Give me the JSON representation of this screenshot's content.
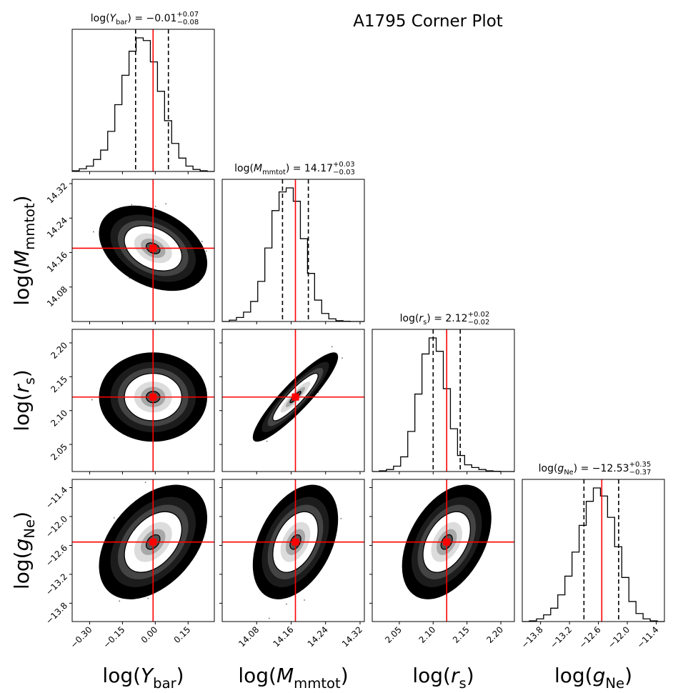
{
  "title": "A1795 Corner Plot",
  "colors": {
    "truth": "#ff0000",
    "hist": "#000000",
    "quantile": "#000000",
    "density": "#000000"
  },
  "chart_data": {
    "type": "corner",
    "title": "A1795 Corner Plot",
    "parameters": [
      {
        "name": "Ybar",
        "label_prefix": "log(",
        "label_var": "Y",
        "label_sub": "bar",
        "label_suffix": ")",
        "title_prefix": "log(",
        "title_var": "Y",
        "title_sub": "bar",
        "title_suffix": ") = −0.01",
        "title_plus": "+0.07",
        "title_minus": "−0.08",
        "median": -0.01,
        "q16": -0.09,
        "q84": 0.06,
        "range": [
          -0.38,
          0.27
        ],
        "ticks": [
          -0.3,
          -0.15,
          0.0,
          0.15
        ],
        "tick_labels": [
          "−0.30",
          "−0.15",
          "0.00",
          "0.15"
        ],
        "hist": [
          0.005,
          0.02,
          0.04,
          0.09,
          0.16,
          0.3,
          0.5,
          0.72,
          0.9,
          1.0,
          0.98,
          0.82,
          0.6,
          0.38,
          0.21,
          0.1,
          0.04,
          0.015,
          0.005,
          0.0
        ]
      },
      {
        "name": "Mmmtot",
        "label_prefix": "log(",
        "label_var": "M",
        "label_sub": "mmtot",
        "label_suffix": ")",
        "title_prefix": "log(",
        "title_var": "M",
        "title_sub": "mmtot",
        "title_suffix": ") = 14.17",
        "title_plus": "+0.03",
        "title_minus": "−0.03",
        "median": 14.17,
        "q16": 14.14,
        "q84": 14.2,
        "range": [
          14.0,
          14.33
        ],
        "ticks": [
          14.08,
          14.16,
          14.24,
          14.32
        ],
        "tick_labels": [
          "14.08",
          "14.16",
          "14.24",
          "14.32"
        ],
        "hist": [
          0.0,
          0.01,
          0.03,
          0.07,
          0.15,
          0.3,
          0.55,
          0.83,
          0.97,
          1.0,
          0.9,
          0.62,
          0.36,
          0.16,
          0.06,
          0.02,
          0.006,
          0.002,
          0.0,
          0.0
        ]
      },
      {
        "name": "rs",
        "label_prefix": "log(",
        "label_var": "r",
        "label_sub": "s",
        "label_suffix": ")",
        "title_prefix": "log(",
        "title_var": "r",
        "title_sub": "s",
        "title_suffix": ") = 2.12",
        "title_plus": "+0.02",
        "title_minus": "−0.02",
        "median": 2.12,
        "q16": 2.1,
        "q84": 2.14,
        "range": [
          2.01,
          2.22
        ],
        "ticks": [
          2.05,
          2.1,
          2.15,
          2.2
        ],
        "tick_labels": [
          "2.05",
          "2.10",
          "2.15",
          "2.20"
        ],
        "hist": [
          0.0,
          0.005,
          0.015,
          0.04,
          0.11,
          0.3,
          0.58,
          0.88,
          1.0,
          0.9,
          0.62,
          0.32,
          0.12,
          0.05,
          0.03,
          0.015,
          0.005,
          0.002,
          0.0,
          0.0
        ]
      },
      {
        "name": "gNe",
        "label_prefix": "log(",
        "label_var": "g",
        "label_sub": "Ne",
        "label_suffix": ")",
        "title_prefix": "log(",
        "title_var": "g",
        "title_sub": "Ne",
        "title_suffix": ") = −12.53",
        "title_plus": "+0.35",
        "title_minus": "−0.37",
        "median": -12.53,
        "q16": -12.9,
        "q84": -12.18,
        "range": [
          -14.18,
          -11.23
        ],
        "ticks": [
          -13.8,
          -13.2,
          -12.6,
          -12.0,
          -11.4
        ],
        "tick_labels": [
          "−13.8",
          "−13.2",
          "−12.6",
          "−12.0",
          "−11.4"
        ],
        "hist": [
          0.0,
          0.005,
          0.02,
          0.05,
          0.1,
          0.2,
          0.34,
          0.52,
          0.72,
          0.9,
          1.0,
          0.94,
          0.78,
          0.56,
          0.33,
          0.15,
          0.06,
          0.02,
          0.005,
          0.0
        ]
      }
    ],
    "correlations": [
      {
        "i": 1,
        "j": 0,
        "rho": -0.35
      },
      {
        "i": 2,
        "j": 0,
        "rho": 0.0
      },
      {
        "i": 2,
        "j": 1,
        "rho": 0.9
      },
      {
        "i": 3,
        "j": 0,
        "rho": 0.42
      },
      {
        "i": 3,
        "j": 1,
        "rho": 0.4
      },
      {
        "i": 3,
        "j": 2,
        "rho": 0.42
      }
    ],
    "truth_line": "median",
    "quantile_lines": [
      0.16,
      0.84
    ]
  }
}
